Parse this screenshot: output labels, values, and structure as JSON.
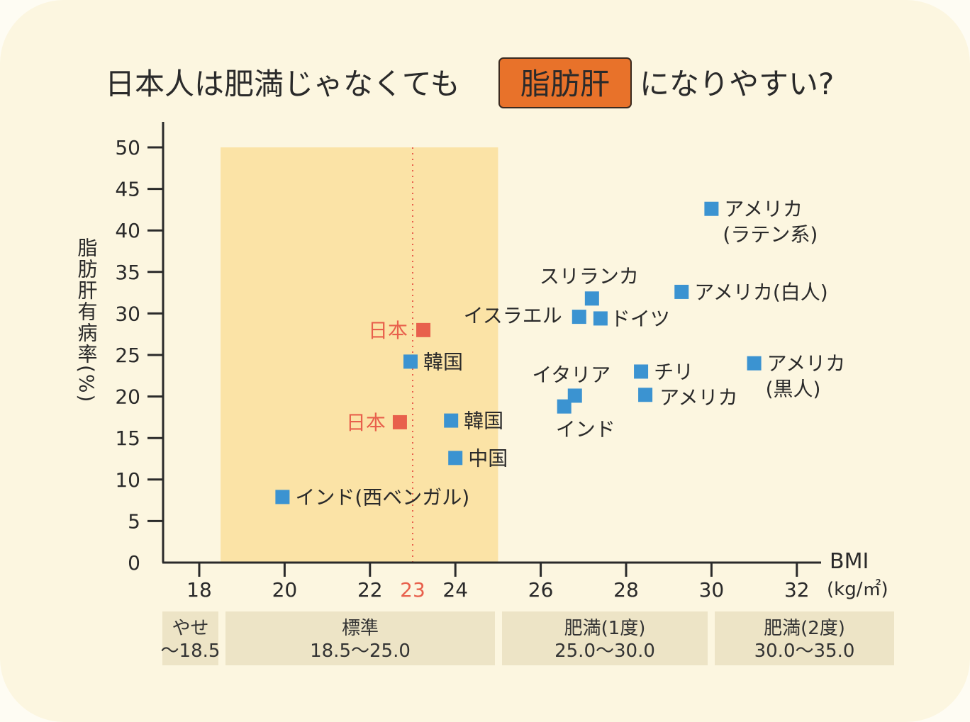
{
  "chart_data": {
    "type": "scatter",
    "title": {
      "before": "日本人は肥満じゃなくても",
      "highlight": "脂肪肝",
      "after": "になりやすい?"
    },
    "xlabel": "BMI",
    "xunit": "(kg/㎡)",
    "ylabel": "脂肪肝有病率(%)",
    "xlim": [
      17.3,
      33
    ],
    "ylim": [
      0,
      50
    ],
    "xticks": [
      "18",
      "20",
      "22",
      "23",
      "24",
      "26",
      "28",
      "30",
      "32"
    ],
    "yticks": [
      "0",
      "5",
      "10",
      "15",
      "20",
      "25",
      "30",
      "35",
      "40",
      "45",
      "50"
    ],
    "highlight_band": {
      "x": [
        18.5,
        25.0
      ],
      "y": [
        0,
        50
      ],
      "color": "#fbe3a6"
    },
    "reference_line": {
      "x": 23,
      "color": "#e8604c",
      "style": "dotted"
    },
    "colors": {
      "japan": "#e8604c",
      "other": "#3b93d1",
      "title_highlight": "#e8722a"
    },
    "points": [
      {
        "label": [
          "日本"
        ],
        "x": 23.25,
        "y": 28.0,
        "group": "japan"
      },
      {
        "label": [
          "日本"
        ],
        "x": 22.7,
        "y": 16.9,
        "group": "japan"
      },
      {
        "label": [
          "韓国"
        ],
        "x": 22.95,
        "y": 24.2,
        "group": "other"
      },
      {
        "label": [
          "韓国"
        ],
        "x": 23.9,
        "y": 17.1,
        "group": "other"
      },
      {
        "label": [
          "中国"
        ],
        "x": 24.0,
        "y": 12.6,
        "group": "other"
      },
      {
        "label": [
          "インド(西ベンガル)"
        ],
        "x": 19.95,
        "y": 7.9,
        "group": "other"
      },
      {
        "label": [
          "インド"
        ],
        "x": 26.55,
        "y": 18.8,
        "group": "other"
      },
      {
        "label": [
          "イタリア"
        ],
        "x": 26.8,
        "y": 20.1,
        "group": "other"
      },
      {
        "label": [
          "スリランカ"
        ],
        "x": 27.2,
        "y": 31.8,
        "group": "other"
      },
      {
        "label": [
          "イスラエル"
        ],
        "x": 26.9,
        "y": 29.6,
        "group": "other"
      },
      {
        "label": [
          "ドイツ"
        ],
        "x": 27.4,
        "y": 29.4,
        "group": "other"
      },
      {
        "label": [
          "チリ"
        ],
        "x": 28.35,
        "y": 23.0,
        "group": "other"
      },
      {
        "label": [
          "アメリカ"
        ],
        "x": 28.45,
        "y": 20.2,
        "group": "other"
      },
      {
        "label": [
          "アメリカ(白人)"
        ],
        "x": 29.3,
        "y": 32.6,
        "group": "other"
      },
      {
        "label": [
          "アメリカ",
          "(ラテン系)"
        ],
        "x": 30.0,
        "y": 42.6,
        "group": "other"
      },
      {
        "label": [
          "アメリカ",
          "(黒人)"
        ],
        "x": 31.0,
        "y": 24.0,
        "group": "other"
      }
    ],
    "categories": [
      {
        "name": "やせ",
        "range": "〜18.5"
      },
      {
        "name": "標準",
        "range": "18.5〜25.0"
      },
      {
        "name": "肥満(1度)",
        "range": "25.0〜30.0"
      },
      {
        "name": "肥満(2度)",
        "range": "30.0〜35.0"
      }
    ]
  }
}
